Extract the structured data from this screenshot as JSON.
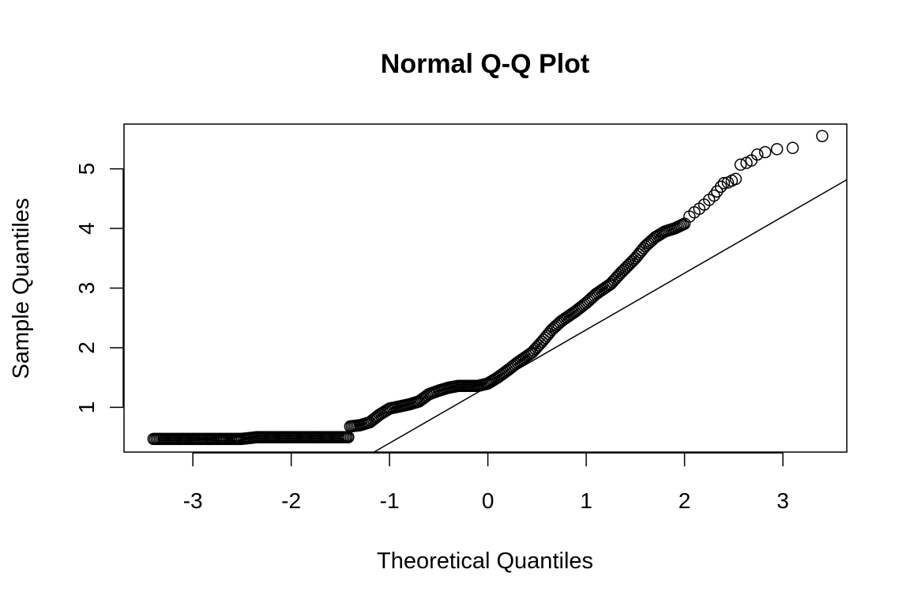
{
  "chart_data": {
    "type": "scatter",
    "title": "Normal Q-Q Plot",
    "xlabel": "Theoretical Quantiles",
    "ylabel": "Sample Quantiles",
    "xlim": [
      -3.7,
      3.65
    ],
    "ylim": [
      0.25,
      5.75
    ],
    "xticks": [
      -3,
      -2,
      -1,
      0,
      1,
      2,
      3
    ],
    "yticks": [
      1,
      2,
      3,
      4,
      5
    ],
    "grid": false,
    "legend": "none",
    "reference_line": {
      "slope": 0.95,
      "intercept": 1.35
    },
    "colors": {
      "points": "#000000",
      "line": "#000000",
      "frame": "#000000"
    },
    "curve": {
      "x": [
        -3.4,
        -3.1,
        -2.95,
        -2.83,
        -2.73,
        -2.65,
        -2.58,
        -2.52,
        -2.45,
        -2.35,
        -2.2,
        -2.0,
        -1.8,
        -1.6,
        -1.45,
        -1.42,
        -1.4,
        -1.3,
        -1.2,
        -1.1,
        -1.0,
        -0.8,
        -0.7,
        -0.6,
        -0.5,
        -0.4,
        -0.3,
        -0.2,
        -0.1,
        0.0,
        0.1,
        0.2,
        0.3,
        0.45,
        0.55,
        0.65,
        0.75,
        0.9,
        1.0,
        1.1,
        1.25,
        1.35,
        1.5,
        1.6,
        1.7,
        1.8,
        1.9,
        2.0
      ],
      "y": [
        0.47,
        0.47,
        0.47,
        0.47,
        0.47,
        0.47,
        0.47,
        0.47,
        0.48,
        0.5,
        0.5,
        0.5,
        0.5,
        0.5,
        0.5,
        0.5,
        0.68,
        0.7,
        0.75,
        0.88,
        0.98,
        1.05,
        1.1,
        1.22,
        1.28,
        1.33,
        1.36,
        1.36,
        1.36,
        1.4,
        1.5,
        1.62,
        1.75,
        1.92,
        2.1,
        2.3,
        2.45,
        2.62,
        2.75,
        2.9,
        3.07,
        3.25,
        3.5,
        3.7,
        3.85,
        3.95,
        4.0,
        4.08
      ]
    },
    "upper_tail": {
      "x": [
        2.05,
        2.1,
        2.15,
        2.2,
        2.25,
        2.3,
        2.33,
        2.37,
        2.4,
        2.44,
        2.48,
        2.52,
        2.57,
        2.63,
        2.68,
        2.74,
        2.82,
        2.94,
        3.1,
        3.4
      ],
      "y": [
        4.2,
        4.27,
        4.33,
        4.4,
        4.48,
        4.55,
        4.62,
        4.7,
        4.76,
        4.77,
        4.8,
        4.83,
        5.07,
        5.1,
        5.14,
        5.24,
        5.28,
        5.33,
        5.35,
        5.55
      ]
    }
  }
}
